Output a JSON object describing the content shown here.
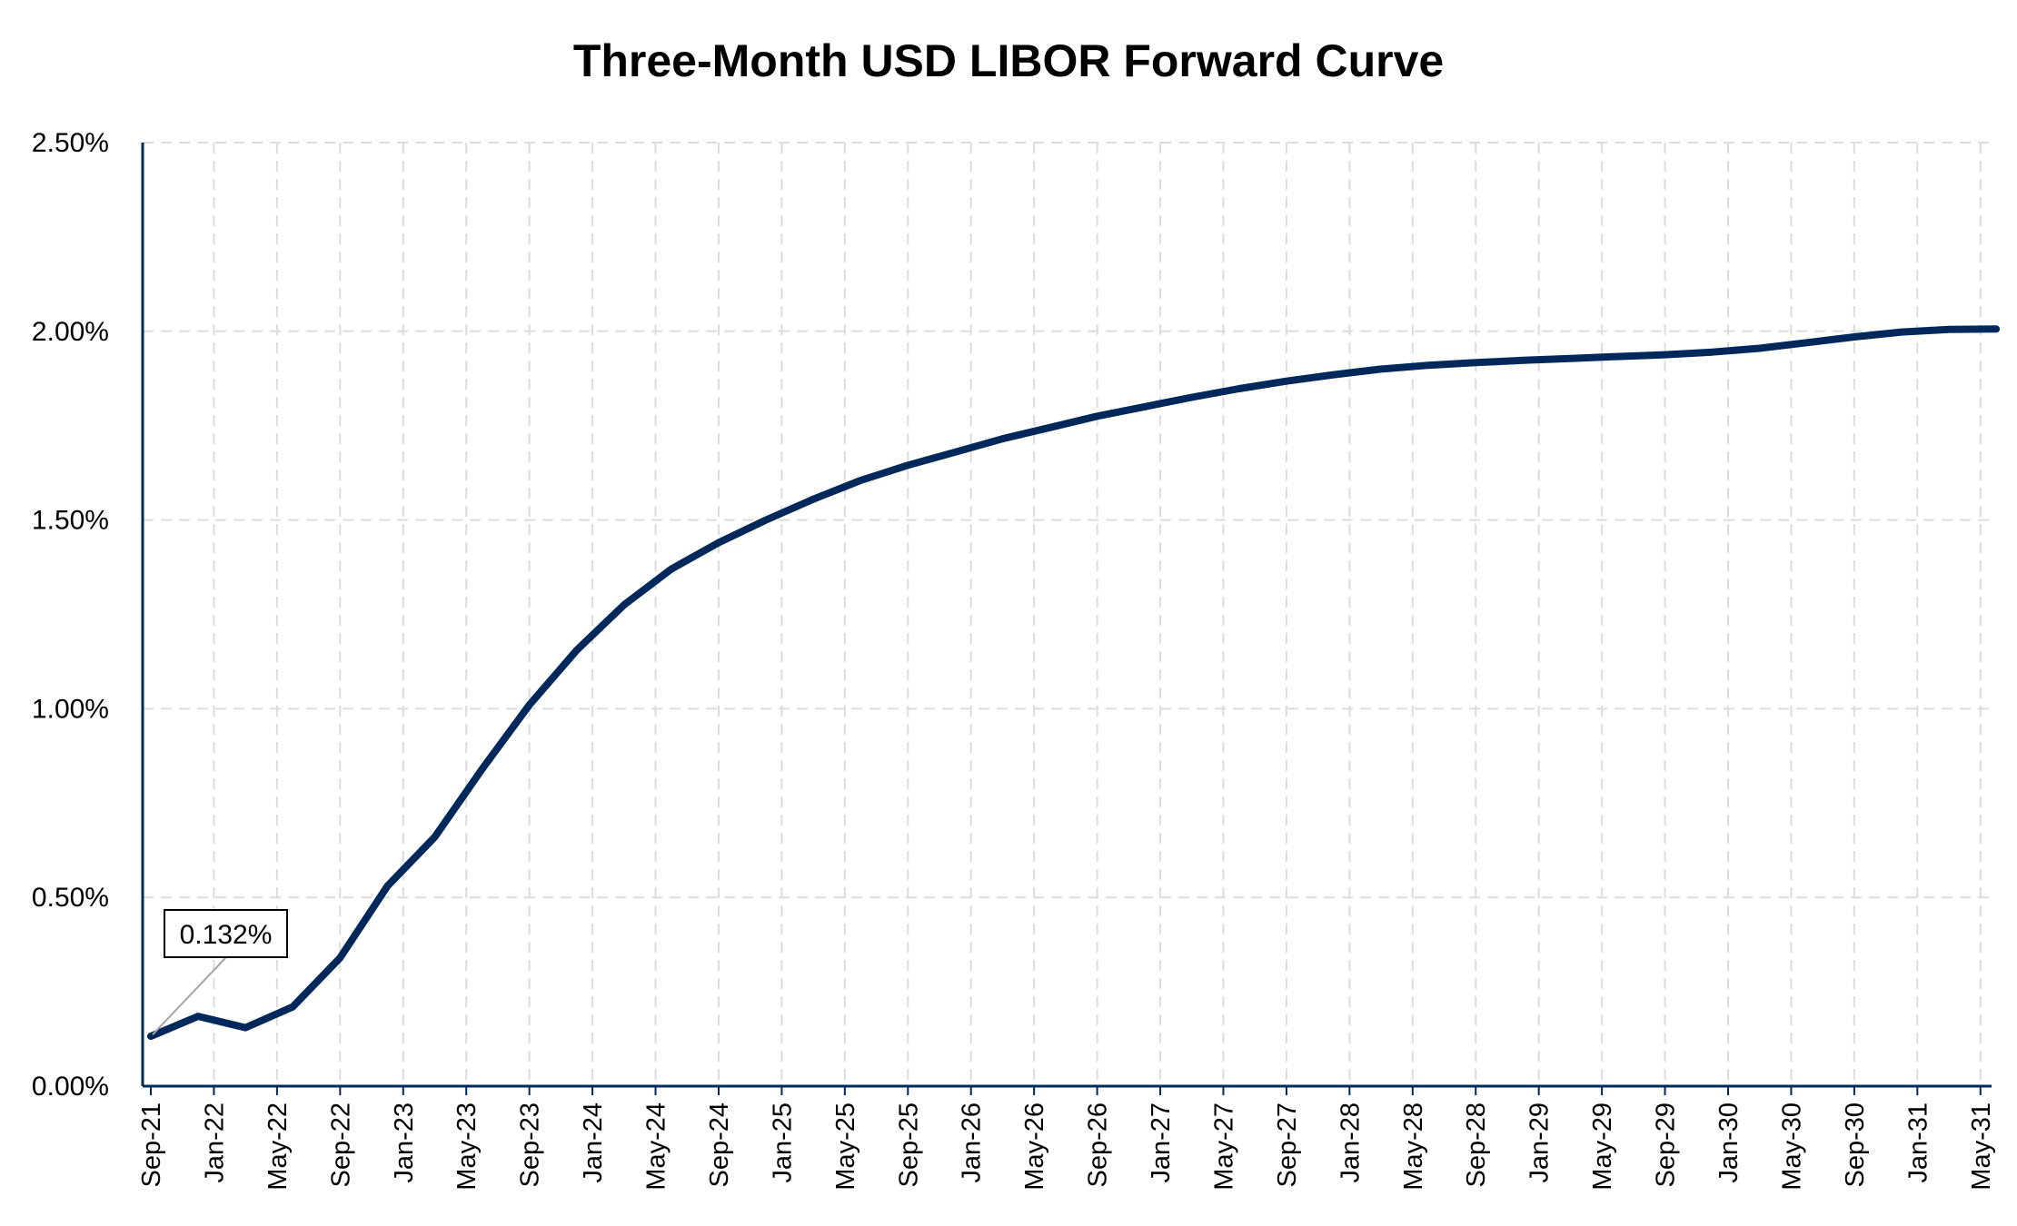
{
  "chart_data": {
    "type": "line",
    "title": "Three-Month USD LIBOR Forward Curve",
    "xlabel": "",
    "ylabel": "",
    "ylim": [
      0,
      2.5
    ],
    "y_ticks": [
      "0.00%",
      "0.50%",
      "1.00%",
      "1.50%",
      "2.00%",
      "2.50%"
    ],
    "y_tick_values": [
      0,
      0.5,
      1.0,
      1.5,
      2.0,
      2.5
    ],
    "x_ticks": [
      "Sep-21",
      "Jan-22",
      "May-22",
      "Sep-22",
      "Jan-23",
      "May-23",
      "Sep-23",
      "Jan-24",
      "May-24",
      "Sep-24",
      "Jan-25",
      "May-25",
      "Sep-25",
      "Jan-26",
      "May-26",
      "Sep-26",
      "Jan-27",
      "May-27",
      "Sep-27",
      "Jan-28",
      "May-28",
      "Sep-28",
      "Jan-29",
      "May-29",
      "Sep-29",
      "Jan-30",
      "May-30",
      "Sep-30",
      "Jan-31",
      "May-31"
    ],
    "grid": true,
    "color": "#00285a",
    "annotation": {
      "label": "0.132%",
      "x": "Sep-21",
      "y": 0.132
    },
    "series": [
      {
        "x": [
          "Sep-21",
          "Dec-21",
          "Mar-22",
          "Jun-22",
          "Sep-22",
          "Dec-22",
          "Mar-23",
          "Jun-23",
          "Sep-23",
          "Dec-23",
          "Mar-24",
          "Jun-24",
          "Sep-24",
          "Dec-24",
          "Mar-25",
          "Jun-25",
          "Sep-25",
          "Dec-25",
          "Mar-26",
          "Jun-26",
          "Sep-26",
          "Dec-26",
          "Mar-27",
          "Jun-27",
          "Sep-27",
          "Dec-27",
          "Mar-28",
          "Jun-28",
          "Sep-28",
          "Dec-28",
          "Mar-29",
          "Jun-29",
          "Sep-29",
          "Dec-29",
          "Mar-30",
          "Jun-30",
          "Sep-30",
          "Dec-30",
          "Mar-31",
          "Jun-31"
        ],
        "values": [
          0.132,
          0.185,
          0.155,
          0.21,
          0.34,
          0.53,
          0.66,
          0.84,
          1.01,
          1.155,
          1.275,
          1.37,
          1.44,
          1.5,
          1.555,
          1.605,
          1.645,
          1.68,
          1.715,
          1.745,
          1.775,
          1.8,
          1.825,
          1.848,
          1.868,
          1.885,
          1.9,
          1.91,
          1.917,
          1.923,
          1.928,
          1.933,
          1.938,
          1.945,
          1.955,
          1.97,
          1.985,
          1.998,
          2.005,
          2.006
        ]
      }
    ]
  }
}
